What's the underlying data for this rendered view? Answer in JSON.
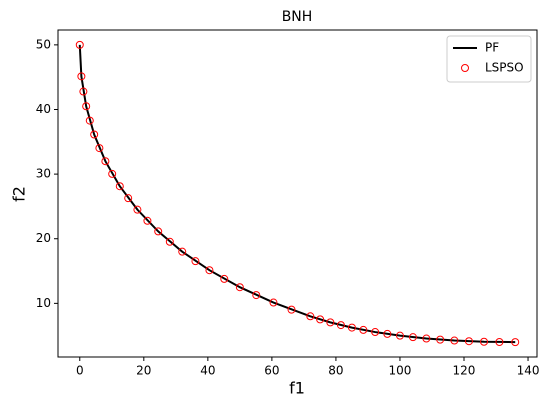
{
  "chart_data": {
    "type": "scatter",
    "title": "BNH",
    "x_label": "f1",
    "y_label": "f2",
    "xlim": [
      -6.8,
      142.8
    ],
    "ylim": [
      1.7,
      52.3
    ],
    "xticks": [
      0,
      20,
      40,
      60,
      80,
      100,
      120,
      140
    ],
    "yticks": [
      10,
      20,
      30,
      40,
      50
    ],
    "legend": "upper right",
    "series": [
      {
        "name": "PF",
        "color": "#000000",
        "style": "line",
        "x": [
          0,
          0.5,
          2,
          4.5,
          8,
          12.5,
          18,
          24.5,
          32,
          40.5,
          50,
          60.5,
          72,
          78.25,
          85,
          92.25,
          100,
          108.25,
          117,
          126.25,
          136
        ],
        "values": [
          50,
          45.13,
          40.5,
          36.13,
          32,
          28.13,
          24.5,
          21.13,
          18,
          15.13,
          12.5,
          10.13,
          8,
          7.06,
          6.25,
          5.56,
          5,
          4.56,
          4.25,
          4.06,
          4
        ]
      },
      {
        "name": "LSPSO",
        "color": "#ff0000",
        "style": "markers",
        "x": [
          0,
          0.5,
          1.125,
          2,
          3.125,
          4.5,
          6.125,
          8,
          10.125,
          12.5,
          15.125,
          18,
          21.125,
          24.5,
          28.125,
          32,
          36.125,
          40.5,
          45.125,
          50,
          55.125,
          60.5,
          66.125,
          72,
          75.06,
          78.25,
          81.56,
          85,
          88.56,
          92.25,
          96.06,
          100,
          104.06,
          108.25,
          112.56,
          117,
          121.56,
          126.25,
          131.06,
          136
        ],
        "values": [
          50,
          45.13,
          42.78,
          40.5,
          38.28,
          36.13,
          34.03,
          32,
          30.03,
          28.13,
          26.28,
          24.5,
          22.78,
          21.13,
          19.53,
          18,
          16.53,
          15.13,
          13.78,
          12.5,
          11.28,
          10.13,
          9.03,
          8,
          7.52,
          7.06,
          6.64,
          6.25,
          5.89,
          5.56,
          5.27,
          5,
          4.77,
          4.56,
          4.39,
          4.25,
          4.14,
          4.06,
          4.02,
          4
        ]
      }
    ]
  }
}
